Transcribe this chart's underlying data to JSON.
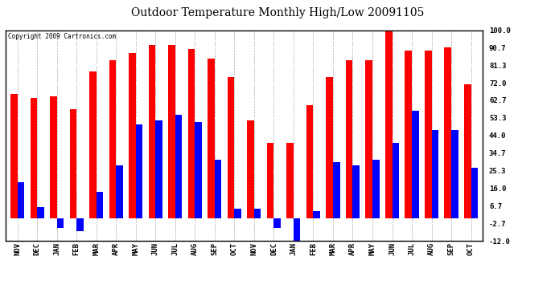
{
  "title": "Outdoor Temperature Monthly High/Low 20091105",
  "copyright": "Copyright 2009 Cartronics.com",
  "months": [
    "NOV",
    "DEC",
    "JAN",
    "FEB",
    "MAR",
    "APR",
    "MAY",
    "JUN",
    "JUL",
    "AUG",
    "SEP",
    "OCT",
    "NOV",
    "DEC",
    "JAN",
    "FEB",
    "MAR",
    "APR",
    "MAY",
    "JUN",
    "JUL",
    "AUG",
    "SEP",
    "OCT"
  ],
  "highs": [
    66,
    64,
    65,
    58,
    78,
    84,
    88,
    92,
    92,
    90,
    85,
    75,
    52,
    40,
    40,
    60,
    75,
    84,
    84,
    100,
    89,
    89,
    91,
    71
  ],
  "lows": [
    19,
    6,
    -5,
    -7,
    14,
    28,
    50,
    52,
    55,
    51,
    31,
    5,
    5,
    -5,
    -12,
    4,
    30,
    28,
    31,
    40,
    57,
    47,
    47,
    27
  ],
  "high_color": "#ff0000",
  "low_color": "#0000ff",
  "bg_color": "#ffffff",
  "grid_color": "#aaaaaa",
  "yticks": [
    100.0,
    90.7,
    81.3,
    72.0,
    62.7,
    53.3,
    44.0,
    34.7,
    25.3,
    16.0,
    6.7,
    -2.7,
    -12.0
  ],
  "ylim": [
    -12,
    100
  ],
  "bar_width": 0.35,
  "title_fontsize": 10,
  "tick_fontsize": 6.5
}
